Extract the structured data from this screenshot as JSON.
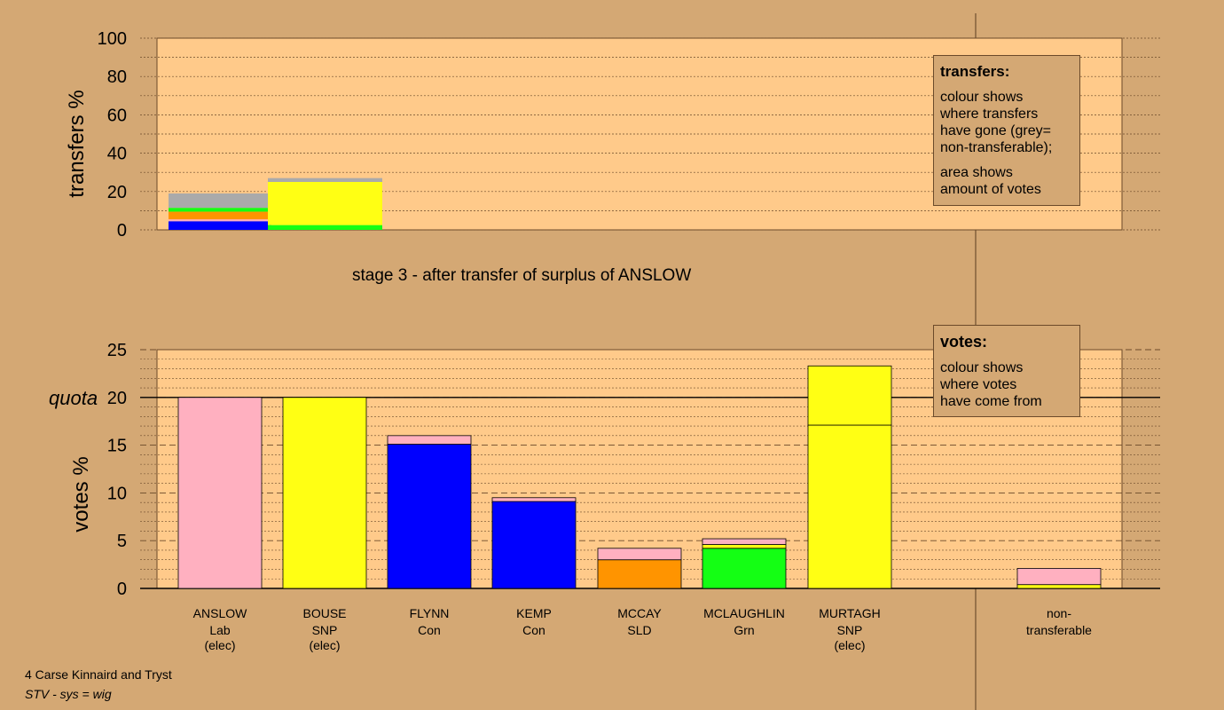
{
  "stage_title": "stage 3 - after transfer of surplus of ANSLOW",
  "transfers_note": {
    "heading": "transfers:",
    "lines": [
      "colour shows",
      "where transfers",
      "have gone (grey=",
      "non-transferable);"
    ],
    "lines2": [
      "area shows",
      "amount of votes"
    ]
  },
  "votes_note": {
    "heading": "votes:",
    "lines": [
      "colour shows",
      "where votes",
      "have come from"
    ]
  },
  "footer": {
    "line1": "4 Carse Kinnaird and Tryst",
    "line2": "STV - sys = wig"
  },
  "colors": {
    "background": "#d4a874",
    "plot_bg": "#ffca8a",
    "Lab": "#ffb0c0",
    "SNP": "#ffff14",
    "Con": "#0000ff",
    "SLD": "#ff9400",
    "Grn": "#14ff14",
    "nontransferable": "#aaaaaa"
  },
  "chart_data": [
    {
      "type": "bar",
      "name": "transfers",
      "ylabel": "transfers %",
      "ylim": [
        0,
        100
      ],
      "yticks": [
        0,
        20,
        40,
        60,
        80,
        100
      ],
      "grid": true,
      "bars": [
        {
          "segments": [
            {
              "party": "Con",
              "value": 4.5
            },
            {
              "party": "Lab",
              "value": 1.0
            },
            {
              "party": "SLD",
              "value": 4.0
            },
            {
              "party": "Grn",
              "value": 2.0
            },
            {
              "party": "nontransferable",
              "value": 7.5
            }
          ]
        },
        {
          "segments": [
            {
              "party": "Grn",
              "value": 2.5
            },
            {
              "party": "SNP",
              "value": 22.5
            },
            {
              "party": "nontransferable",
              "value": 2.0
            }
          ]
        }
      ]
    },
    {
      "type": "bar",
      "name": "votes",
      "ylabel": "votes %",
      "ylim": [
        0,
        25
      ],
      "yticks": [
        0,
        5,
        10,
        15,
        20,
        25
      ],
      "quota": 20,
      "quota_label": "quota",
      "grid": true,
      "candidates": [
        {
          "name": "ANSLOW",
          "party": "Lab",
          "status": "(elec)",
          "segments": [
            {
              "party": "Lab",
              "value": 20.0
            }
          ]
        },
        {
          "name": "BOUSE",
          "party": "SNP",
          "status": "(elec)",
          "segments": [
            {
              "party": "SNP",
              "value": 20.0
            }
          ]
        },
        {
          "name": "FLYNN",
          "party": "Con",
          "status": "",
          "segments": [
            {
              "party": "Con",
              "value": 15.1
            },
            {
              "party": "Lab",
              "value": 0.9
            }
          ]
        },
        {
          "name": "KEMP",
          "party": "Con",
          "status": "",
          "segments": [
            {
              "party": "Con",
              "value": 9.1
            },
            {
              "party": "Lab",
              "value": 0.4
            }
          ]
        },
        {
          "name": "MCCAY",
          "party": "SLD",
          "status": "",
          "segments": [
            {
              "party": "SLD",
              "value": 3.0
            },
            {
              "party": "Lab",
              "value": 1.2
            }
          ]
        },
        {
          "name": "MCLAUGHLIN",
          "party": "Grn",
          "status": "",
          "segments": [
            {
              "party": "Grn",
              "value": 4.2
            },
            {
              "party": "SNP",
              "value": 0.4
            },
            {
              "party": "Lab",
              "value": 0.6
            }
          ]
        },
        {
          "name": "MURTAGH",
          "party": "SNP",
          "status": "(elec)",
          "segments": [
            {
              "party": "SNP",
              "value": 17.1
            },
            {
              "party": "SNP",
              "value": 6.2
            }
          ]
        }
      ],
      "nontransferable": {
        "label_line1": "non-",
        "label_line2": "transferable",
        "segments": [
          {
            "party": "SNP",
            "value": 0.4
          },
          {
            "party": "Lab",
            "value": 1.7
          }
        ]
      }
    }
  ]
}
